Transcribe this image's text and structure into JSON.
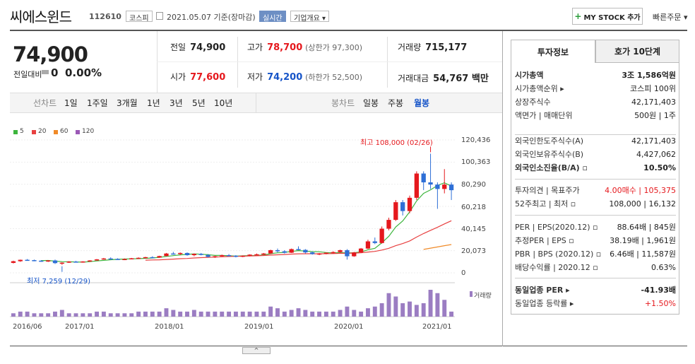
{
  "header": {
    "name": "씨에스윈드",
    "code": "112610",
    "market": "코스피",
    "date": "2021.05.07  기준(장마감)",
    "realtime": "실시간",
    "company_overview": "기업개요 ▾",
    "my_stock": "MY STOCK 추가",
    "quick_order": "빠른주문 ▾"
  },
  "price": {
    "current": "74,900",
    "change_label": "전일대비",
    "change_value": "0",
    "change_pct": "0.00%",
    "prev_label": "전일",
    "prev": "74,900",
    "high_label": "고가",
    "high": "78,700",
    "upper_limit": "(상한가 97,300)",
    "volume_label": "거래량",
    "volume": "715,177",
    "open_label": "시가",
    "open": "77,600",
    "low_label": "저가",
    "low": "74,200",
    "lower_limit": "(하한가 52,500)",
    "amount_label": "거래대금",
    "amount": "54,767 백만"
  },
  "periods": {
    "line_label": "선차트",
    "line_items": [
      "1일",
      "1주일",
      "3개월",
      "1년",
      "3년",
      "5년",
      "10년"
    ],
    "candle_label": "봉차트",
    "candle_items": [
      "일봉",
      "주봉",
      "월봉"
    ],
    "active": "월봉"
  },
  "legend": [
    "5",
    "20",
    "60",
    "120"
  ],
  "colors": {
    "ma5": "#3db53d",
    "ma20": "#e84040",
    "ma60": "#f08a28",
    "ma120": "#9b59b6",
    "up": "#e5181d",
    "down": "#2e6fd6",
    "volume": "#9b7dc2"
  },
  "chart_data": {
    "type": "candlestick",
    "y_ticks": [
      "120,436",
      "100,363",
      "80,290",
      "60,218",
      "40,145",
      "20,073",
      "0"
    ],
    "x_ticks": [
      "2016/06",
      "2017/01",
      "2018/01",
      "2019/01",
      "2020/01",
      "2021/01"
    ],
    "max_annotation": "최고 108,000 (02/26)",
    "min_annotation": "최저 7,259 (12/29)",
    "volume_label": "거래량",
    "ylim": [
      0,
      120436
    ],
    "candles": [
      [
        9000,
        11000,
        8500,
        10500
      ],
      [
        10500,
        12000,
        10000,
        11800
      ],
      [
        11800,
        12500,
        11000,
        11500
      ],
      [
        11500,
        12000,
        10500,
        11000
      ],
      [
        11000,
        11500,
        10000,
        10500
      ],
      [
        10500,
        11500,
        9800,
        11200
      ],
      [
        11200,
        12000,
        8000,
        8800
      ],
      [
        8800,
        9500,
        7259,
        9200
      ],
      [
        9200,
        10500,
        9000,
        10200
      ],
      [
        10200,
        10800,
        9500,
        9800
      ],
      [
        9800,
        10500,
        9200,
        10300
      ],
      [
        10300,
        11500,
        10000,
        11200
      ],
      [
        11200,
        12500,
        11000,
        12200
      ],
      [
        12200,
        13500,
        12000,
        13000
      ],
      [
        13000,
        14000,
        12200,
        12600
      ],
      [
        12600,
        13200,
        11800,
        12200
      ],
      [
        12200,
        13000,
        11500,
        12500
      ],
      [
        12500,
        13500,
        12300,
        13200
      ],
      [
        13200,
        14000,
        12800,
        13600
      ],
      [
        13600,
        14500,
        13000,
        14200
      ],
      [
        14200,
        15000,
        13500,
        13800
      ],
      [
        13800,
        15500,
        13600,
        15200
      ],
      [
        15200,
        18000,
        15000,
        17500
      ],
      [
        17500,
        19000,
        16500,
        17000
      ],
      [
        17000,
        18500,
        16000,
        18000
      ],
      [
        18000,
        18500,
        15500,
        16000
      ],
      [
        16000,
        17500,
        15000,
        17200
      ],
      [
        17200,
        18000,
        15800,
        16200
      ],
      [
        16200,
        17000,
        14000,
        14500
      ],
      [
        14500,
        15500,
        13500,
        15000
      ],
      [
        15000,
        16500,
        14500,
        16000
      ],
      [
        16000,
        17000,
        15000,
        15500
      ],
      [
        15500,
        16000,
        14000,
        14800
      ],
      [
        14800,
        15800,
        14200,
        15500
      ],
      [
        15500,
        16800,
        15000,
        16500
      ],
      [
        16500,
        17500,
        16000,
        16800
      ],
      [
        16800,
        18000,
        16200,
        17500
      ],
      [
        17500,
        21000,
        17200,
        20500
      ],
      [
        20500,
        22000,
        18500,
        19500
      ],
      [
        19500,
        20500,
        17500,
        18200
      ],
      [
        18200,
        22000,
        18000,
        21500
      ],
      [
        21500,
        24000,
        20500,
        20800
      ],
      [
        20800,
        21500,
        17500,
        18500
      ],
      [
        18500,
        19500,
        16500,
        17000
      ],
      [
        17000,
        18000,
        16000,
        17500
      ],
      [
        17500,
        18500,
        16800,
        18200
      ],
      [
        18200,
        19500,
        17500,
        18800
      ],
      [
        18800,
        21000,
        18200,
        20500
      ],
      [
        20500,
        21500,
        12000,
        15000
      ],
      [
        15000,
        19000,
        14500,
        18500
      ],
      [
        18500,
        22500,
        18000,
        22000
      ],
      [
        22000,
        30000,
        21500,
        28500
      ],
      [
        28500,
        32000,
        26000,
        27000
      ],
      [
        27000,
        42000,
        26500,
        40000
      ],
      [
        40000,
        50000,
        38500,
        48000
      ],
      [
        48000,
        66000,
        47000,
        64000
      ],
      [
        64000,
        66000,
        52000,
        56000
      ],
      [
        56000,
        70000,
        54000,
        68000
      ],
      [
        68000,
        92000,
        66000,
        90000
      ],
      [
        90000,
        92000,
        75000,
        82000
      ],
      [
        82000,
        108000,
        76000,
        80000
      ],
      [
        80000,
        82000,
        58000,
        76000
      ],
      [
        76000,
        94000,
        72000,
        80000
      ],
      [
        80000,
        82000,
        66000,
        74900
      ]
    ],
    "volume": [
      2,
      3,
      3,
      2,
      2,
      2,
      3,
      4,
      2,
      2,
      2,
      2,
      3,
      3,
      2,
      2,
      2,
      2,
      3,
      3,
      3,
      3,
      5,
      4,
      3,
      3,
      4,
      3,
      3,
      3,
      3,
      3,
      3,
      3,
      3,
      3,
      3,
      6,
      5,
      3,
      4,
      5,
      4,
      3,
      3,
      3,
      3,
      4,
      6,
      4,
      3,
      5,
      6,
      8,
      14,
      12,
      8,
      9,
      7,
      8,
      16,
      14,
      10,
      3
    ]
  },
  "right_panel": {
    "tab_active": "투자정보",
    "tab_inactive": "호가 10단계",
    "rows1": [
      {
        "l": "시가총액",
        "r": "3조 1,586억원",
        "bold": true
      },
      {
        "l": "시가총액순위 ▸",
        "r": "코스피 100위"
      },
      {
        "l": "상장주식수",
        "r": "42,171,403"
      },
      {
        "l": "액면가 | 매매단위",
        "r": "500원 | 1주"
      }
    ],
    "rows2": [
      {
        "l": "외국인한도주식수(A)",
        "r": "42,171,403"
      },
      {
        "l": "외국인보유주식수(B)",
        "r": "4,427,062"
      },
      {
        "l": "외국인소진율(B/A) ▫",
        "r": "10.50%",
        "bold": true
      }
    ],
    "rows3": [
      {
        "l": "투자의견 | 목표주가",
        "r": "4.00매수 | 105,375"
      },
      {
        "l": "52주최고 | 최저 ▫",
        "r": "108,000 | 16,132"
      }
    ],
    "rows4": [
      {
        "l": "PER | EPS(2020.12) ▫",
        "r": "88.64배 | 845원"
      },
      {
        "l": "추정PER | EPS ▫",
        "r": "38.19배 | 1,961원"
      },
      {
        "l": "PBR | BPS (2020.12) ▫",
        "r": "6.46배 | 11,587원"
      },
      {
        "l": "배당수익률 | 2020.12 ▫",
        "r": "0.63%"
      }
    ],
    "rows5": [
      {
        "l": "동일업종 PER ▸",
        "r": "-41.93배",
        "bold": true
      },
      {
        "l": "동일업종 등락률 ▸",
        "r": "+1.50%"
      }
    ]
  }
}
